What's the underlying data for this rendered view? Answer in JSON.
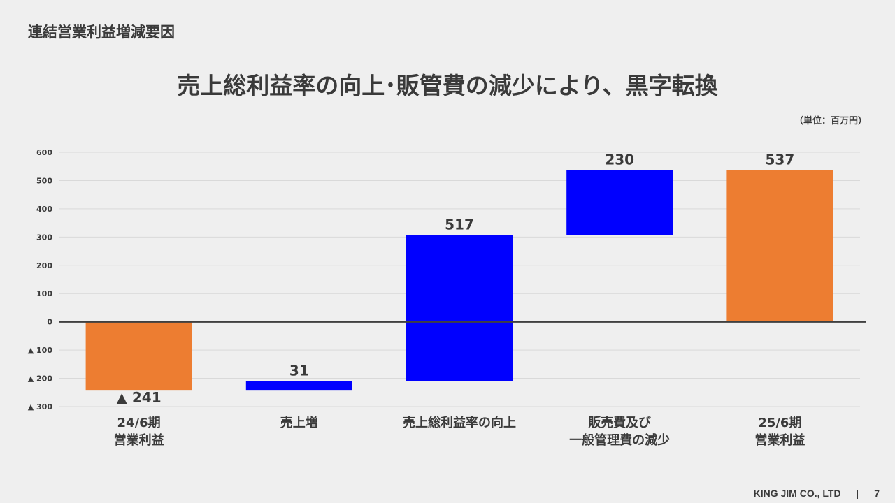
{
  "section_title": "連結営業利益増減要因",
  "headline": "売上総利益率の向上･販管費の減少により、黒字転換",
  "unit_label": "（単位：百万円）",
  "footer": {
    "company": "KING JIM CO., LTD",
    "separator": "|",
    "page": "7"
  },
  "colors": {
    "total": "#ed7d31",
    "change": "#0000ff",
    "axis": "#404040",
    "grid": "#d9d9d9",
    "text": "#3a3a3a"
  },
  "chart_data": {
    "type": "waterfall",
    "title": "",
    "ylim": [
      -300,
      600
    ],
    "yticks": [
      -300,
      -200,
      -100,
      0,
      100,
      200,
      300,
      400,
      500,
      600
    ],
    "ytick_labels": [
      "▲ 300",
      "▲ 200",
      "▲ 100",
      "0",
      "100",
      "200",
      "300",
      "400",
      "500",
      "600"
    ],
    "grid": true,
    "bars": [
      {
        "label_lines": [
          "24/6期",
          "営業利益"
        ],
        "start": 0,
        "end": -241,
        "kind": "total",
        "value_label": "▲ 241"
      },
      {
        "label_lines": [
          "売上増"
        ],
        "start": -241,
        "end": -210,
        "kind": "change",
        "value_label": "31"
      },
      {
        "label_lines": [
          "売上総利益率の向上"
        ],
        "start": -210,
        "end": 307,
        "kind": "change",
        "value_label": "517"
      },
      {
        "label_lines": [
          "販売費及び",
          "一般管理費の減少"
        ],
        "start": 307,
        "end": 537,
        "kind": "change",
        "value_label": "230"
      },
      {
        "label_lines": [
          "25/6期",
          "営業利益"
        ],
        "start": 0,
        "end": 537,
        "kind": "total",
        "value_label": "537"
      }
    ]
  }
}
